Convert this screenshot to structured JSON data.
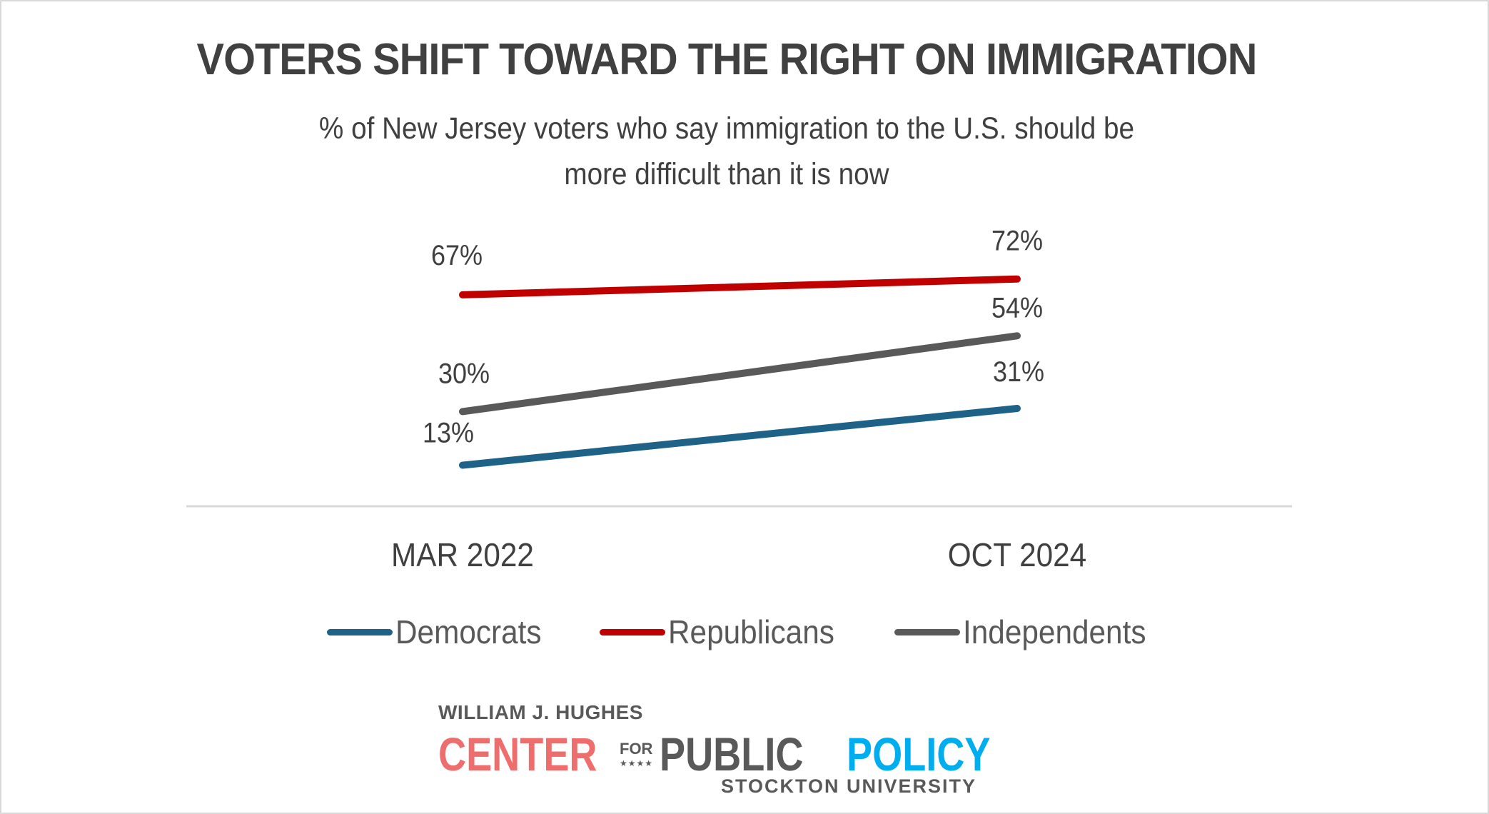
{
  "chart_data": {
    "type": "line",
    "title": "VOTERS SHIFT TOWARD THE RIGHT ON IMMIGRATION",
    "subtitle": [
      "% of New Jersey voters who say immigration to the U.S. should be",
      "more difficult than it is now"
    ],
    "categories": [
      "MAR 2022",
      "OCT 2024"
    ],
    "series": [
      {
        "name": "Democrats",
        "color": "#1F6287",
        "values": [
          13,
          31
        ],
        "labels": [
          "13%",
          "31%"
        ]
      },
      {
        "name": "Republicans",
        "color": "#C00000",
        "values": [
          67,
          72
        ],
        "labels": [
          "67%",
          "72%"
        ]
      },
      {
        "name": "Independents",
        "color": "#595959",
        "values": [
          30,
          54
        ],
        "labels": [
          "30%",
          "54%"
        ]
      }
    ],
    "xlabel": "",
    "ylabel": "",
    "ylim": [
      0,
      80
    ],
    "grid": false,
    "legend_position": "bottom"
  },
  "logo": {
    "top_line": "WILLIAM J. HUGHES",
    "center": "CENTER",
    "for": "FOR",
    "stars": "★★★★",
    "public": "PUBLIC",
    "policy": "POLICY",
    "university": "STOCKTON UNIVERSITY"
  }
}
